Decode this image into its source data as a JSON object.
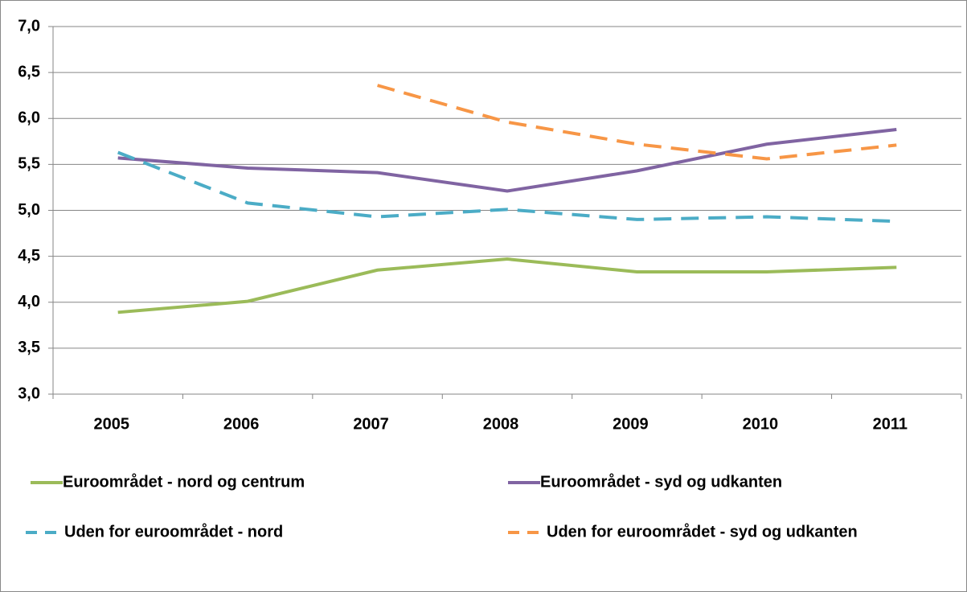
{
  "chart_data": {
    "type": "line",
    "categories": [
      "2005",
      "2006",
      "2007",
      "2008",
      "2009",
      "2010",
      "2011"
    ],
    "series": [
      {
        "name": "Euroområdet - nord og centrum",
        "color": "#9bbb59",
        "dashed": false,
        "values": [
          3.89,
          4.01,
          4.35,
          4.47,
          4.33,
          4.33,
          4.38
        ]
      },
      {
        "name": "Euroområdet - syd og udkanten",
        "color": "#8064a2",
        "dashed": false,
        "values": [
          5.57,
          5.46,
          5.41,
          5.21,
          5.43,
          5.72,
          5.88
        ]
      },
      {
        "name": "Uden for euroområdet - nord",
        "color": "#4bacc6",
        "dashed": true,
        "values": [
          5.63,
          5.08,
          4.93,
          5.01,
          4.9,
          4.93,
          4.88
        ]
      },
      {
        "name": "Uden for euroområdet - syd og udkanten",
        "color": "#f79646",
        "dashed": true,
        "values": [
          null,
          null,
          6.36,
          5.96,
          5.72,
          5.56,
          5.71
        ]
      }
    ],
    "ylim": [
      3.0,
      7.0
    ],
    "yticks": [
      {
        "value": 3.0,
        "label": "3,0"
      },
      {
        "value": 3.5,
        "label": "3,5"
      },
      {
        "value": 4.0,
        "label": "4,0"
      },
      {
        "value": 4.5,
        "label": "4,5"
      },
      {
        "value": 5.0,
        "label": "5,0"
      },
      {
        "value": 5.5,
        "label": "5,5"
      },
      {
        "value": 6.0,
        "label": "6,0"
      },
      {
        "value": 6.5,
        "label": "6,5"
      },
      {
        "value": 7.0,
        "label": "7,0"
      }
    ],
    "grid": true
  }
}
